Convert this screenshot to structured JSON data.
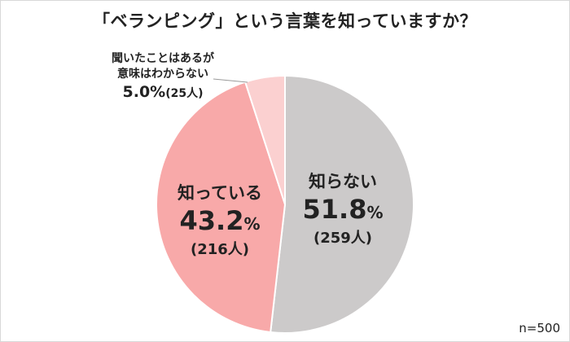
{
  "chart_data": {
    "type": "pie",
    "title": "「ベランピング」という言葉を知っていますか？",
    "slices": [
      {
        "label": "知らない",
        "percent_text": "51.8",
        "count_text": "(259人)",
        "value": 51.8,
        "count": 259,
        "color": "#cccaca"
      },
      {
        "label": "知っている",
        "percent_text": "43.2",
        "count_text": "(216人)",
        "value": 43.2,
        "count": 216,
        "color": "#f8a9a9"
      },
      {
        "label_lines": [
          "聞いたことはあるが",
          "意味はわからない"
        ],
        "percent_text": "5.0%",
        "count_text": "(25人)",
        "value": 5.0,
        "count": 25,
        "color": "#fbd0d0"
      }
    ],
    "percent_unit": "%",
    "start_angle": "top",
    "direction": "clockwise",
    "n_label": "n=500"
  }
}
